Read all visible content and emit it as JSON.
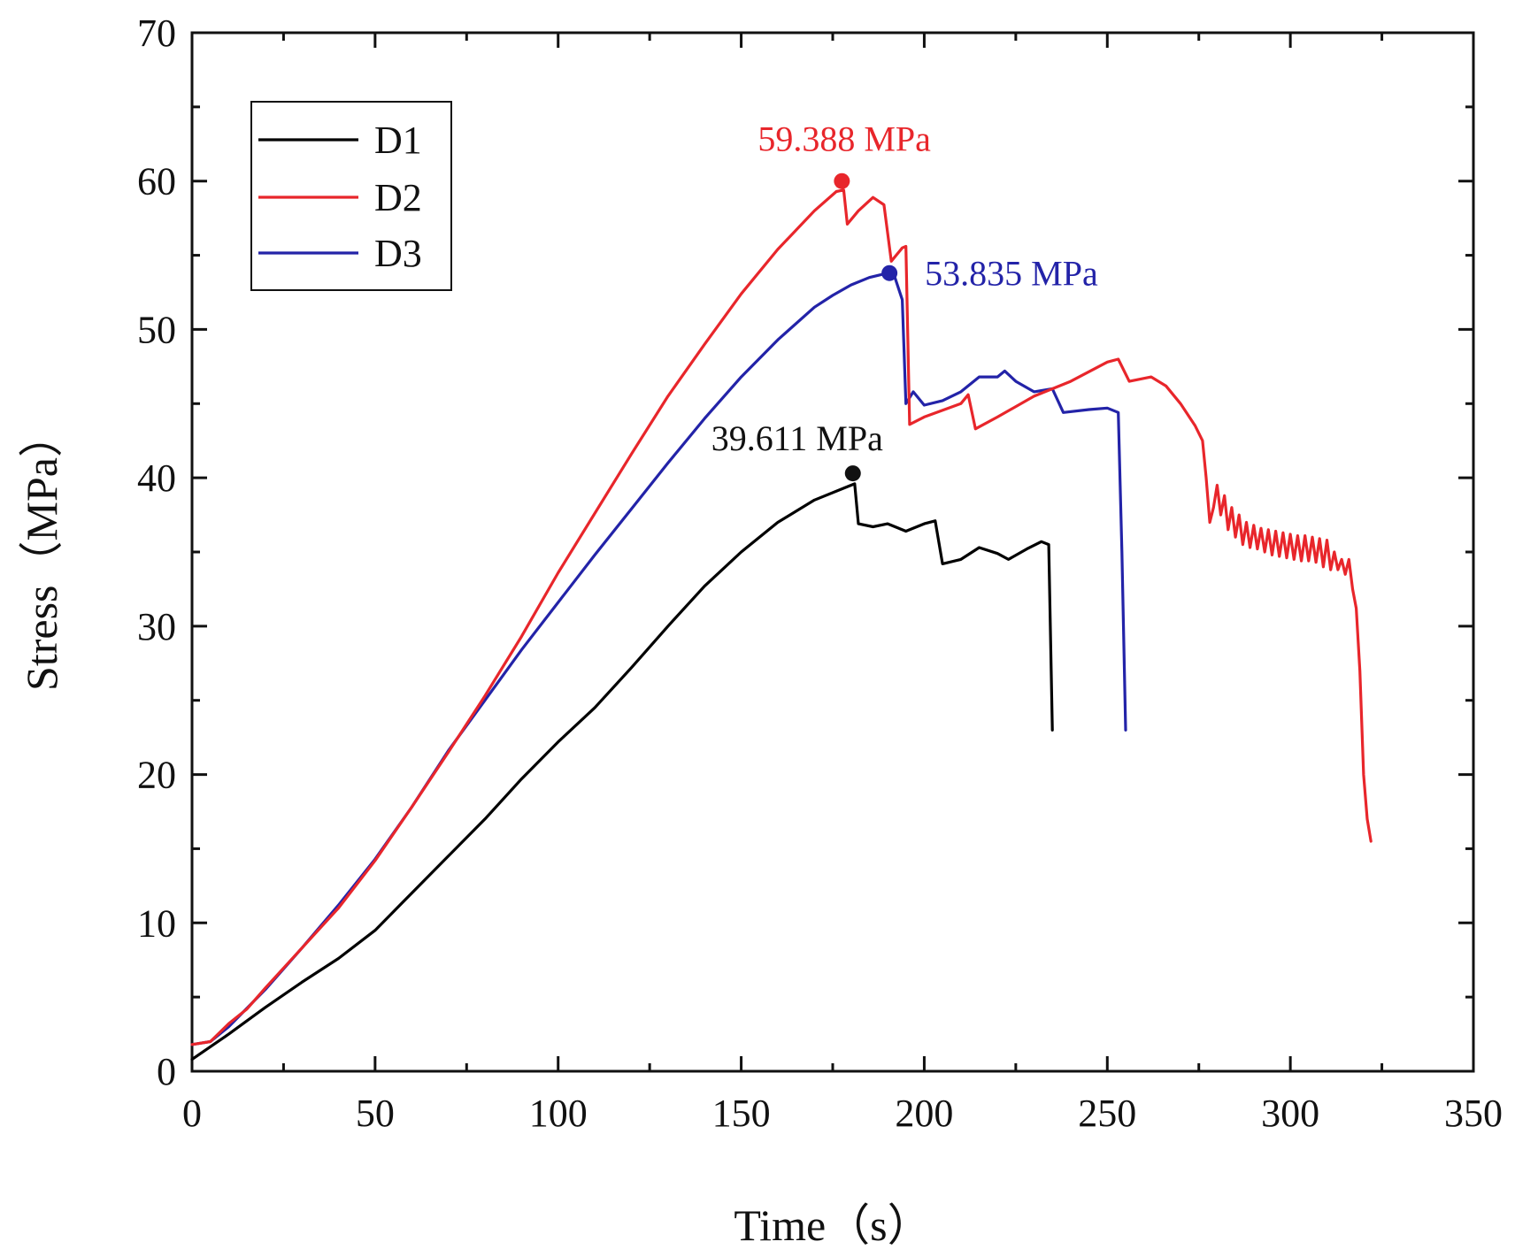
{
  "chart_data": {
    "type": "line",
    "title": "",
    "xlabel": "Time（s）",
    "ylabel": "Stress（MPa）",
    "xlim": [
      0,
      350
    ],
    "ylim": [
      0,
      70
    ],
    "xticks": [
      0,
      50,
      100,
      150,
      200,
      250,
      300,
      350
    ],
    "yticks": [
      0,
      10,
      20,
      30,
      40,
      50,
      60,
      70
    ],
    "x_tick_labels": [
      "0",
      "50",
      "100",
      "150",
      "200",
      "250",
      "300",
      "350"
    ],
    "y_tick_labels": [
      "0",
      "10",
      "20",
      "30",
      "40",
      "50",
      "60",
      "70"
    ],
    "grid": false,
    "legend_position": "top-left",
    "series": [
      {
        "name": "D1",
        "color": "#000000",
        "points": [
          [
            0,
            0.8
          ],
          [
            10,
            2.5
          ],
          [
            20,
            4.3
          ],
          [
            30,
            6.0
          ],
          [
            40,
            7.6
          ],
          [
            50,
            9.5
          ],
          [
            60,
            12.0
          ],
          [
            70,
            14.5
          ],
          [
            80,
            17.0
          ],
          [
            90,
            19.7
          ],
          [
            100,
            22.2
          ],
          [
            110,
            24.5
          ],
          [
            120,
            27.2
          ],
          [
            130,
            30.0
          ],
          [
            140,
            32.7
          ],
          [
            150,
            35.0
          ],
          [
            160,
            37.0
          ],
          [
            170,
            38.5
          ],
          [
            178,
            39.3
          ],
          [
            181,
            39.6
          ],
          [
            182,
            36.9
          ],
          [
            186,
            36.7
          ],
          [
            190,
            36.9
          ],
          [
            195,
            36.4
          ],
          [
            200,
            36.9
          ],
          [
            203,
            37.1
          ],
          [
            205,
            34.2
          ],
          [
            210,
            34.5
          ],
          [
            215,
            35.3
          ],
          [
            220,
            34.9
          ],
          [
            223,
            34.5
          ],
          [
            228,
            35.2
          ],
          [
            232,
            35.7
          ],
          [
            234,
            35.5
          ],
          [
            235,
            23.0
          ]
        ]
      },
      {
        "name": "D2",
        "color": "#e8262b",
        "points": [
          [
            0,
            1.8
          ],
          [
            5,
            2.0
          ],
          [
            10,
            3.2
          ],
          [
            15,
            4.2
          ],
          [
            20,
            5.6
          ],
          [
            30,
            8.3
          ],
          [
            40,
            11.0
          ],
          [
            50,
            14.2
          ],
          [
            60,
            17.8
          ],
          [
            70,
            21.5
          ],
          [
            80,
            25.3
          ],
          [
            90,
            29.3
          ],
          [
            100,
            33.6
          ],
          [
            110,
            37.6
          ],
          [
            120,
            41.6
          ],
          [
            130,
            45.5
          ],
          [
            140,
            49.0
          ],
          [
            150,
            52.4
          ],
          [
            160,
            55.4
          ],
          [
            170,
            58.0
          ],
          [
            176,
            59.3
          ],
          [
            178,
            59.4
          ],
          [
            179,
            57.1
          ],
          [
            182,
            58.0
          ],
          [
            186,
            58.9
          ],
          [
            189,
            58.4
          ],
          [
            191,
            54.6
          ],
          [
            194,
            55.5
          ],
          [
            195,
            55.6
          ],
          [
            196,
            43.6
          ],
          [
            200,
            44.1
          ],
          [
            210,
            45.0
          ],
          [
            212,
            45.6
          ],
          [
            214,
            43.3
          ],
          [
            220,
            44.1
          ],
          [
            230,
            45.5
          ],
          [
            240,
            46.5
          ],
          [
            250,
            47.8
          ],
          [
            253,
            48.0
          ],
          [
            256,
            46.5
          ],
          [
            262,
            46.8
          ],
          [
            266,
            46.2
          ],
          [
            270,
            45.0
          ],
          [
            274,
            43.5
          ],
          [
            276,
            42.5
          ],
          [
            277,
            40.0
          ],
          [
            278,
            37.0
          ],
          [
            279,
            38.0
          ],
          [
            280,
            39.5
          ],
          [
            281,
            37.5
          ],
          [
            282,
            38.8
          ],
          [
            283,
            36.5
          ],
          [
            284,
            38.0
          ],
          [
            285,
            36.0
          ],
          [
            286,
            37.5
          ],
          [
            287,
            35.5
          ],
          [
            288,
            37.0
          ],
          [
            289,
            35.3
          ],
          [
            290,
            36.8
          ],
          [
            291,
            35.2
          ],
          [
            292,
            36.6
          ],
          [
            293,
            35.0
          ],
          [
            294,
            36.5
          ],
          [
            295,
            34.8
          ],
          [
            296,
            36.4
          ],
          [
            297,
            34.7
          ],
          [
            298,
            36.3
          ],
          [
            299,
            34.6
          ],
          [
            300,
            36.2
          ],
          [
            301,
            34.5
          ],
          [
            302,
            36.1
          ],
          [
            303,
            34.4
          ],
          [
            304,
            36.1
          ],
          [
            305,
            34.4
          ],
          [
            306,
            36.0
          ],
          [
            307,
            34.3
          ],
          [
            308,
            35.9
          ],
          [
            309,
            34.0
          ],
          [
            310,
            35.8
          ],
          [
            311,
            33.8
          ],
          [
            312,
            35.0
          ],
          [
            313,
            33.8
          ],
          [
            314,
            34.5
          ],
          [
            315,
            33.5
          ],
          [
            316,
            34.5
          ],
          [
            317,
            32.5
          ],
          [
            318,
            31.2
          ],
          [
            319,
            27.0
          ],
          [
            320,
            20.0
          ],
          [
            321,
            17.0
          ],
          [
            322,
            15.5
          ]
        ]
      },
      {
        "name": "D3",
        "color": "#2323a8",
        "points": [
          [
            0,
            1.8
          ],
          [
            5,
            2.0
          ],
          [
            10,
            3.0
          ],
          [
            20,
            5.5
          ],
          [
            30,
            8.3
          ],
          [
            40,
            11.2
          ],
          [
            50,
            14.3
          ],
          [
            60,
            17.8
          ],
          [
            70,
            21.6
          ],
          [
            80,
            25.0
          ],
          [
            90,
            28.4
          ],
          [
            100,
            31.6
          ],
          [
            110,
            34.8
          ],
          [
            120,
            37.9
          ],
          [
            130,
            41.0
          ],
          [
            140,
            44.0
          ],
          [
            150,
            46.8
          ],
          [
            160,
            49.3
          ],
          [
            170,
            51.5
          ],
          [
            175,
            52.3
          ],
          [
            180,
            53.0
          ],
          [
            185,
            53.5
          ],
          [
            190,
            53.8
          ],
          [
            192,
            53.5
          ],
          [
            194,
            52.0
          ],
          [
            195,
            45.0
          ],
          [
            197,
            45.8
          ],
          [
            200,
            44.9
          ],
          [
            205,
            45.2
          ],
          [
            210,
            45.8
          ],
          [
            215,
            46.8
          ],
          [
            220,
            46.8
          ],
          [
            222,
            47.2
          ],
          [
            225,
            46.5
          ],
          [
            230,
            45.8
          ],
          [
            235,
            46.0
          ],
          [
            238,
            44.4
          ],
          [
            245,
            44.6
          ],
          [
            250,
            44.7
          ],
          [
            253,
            44.4
          ],
          [
            254,
            35.0
          ],
          [
            255,
            23.0
          ]
        ]
      }
    ],
    "annotations": [
      {
        "text": "59.388 MPa",
        "series": "D2",
        "x": 177.5,
        "y": 60.0,
        "color": "#e8262b"
      },
      {
        "text": "53.835 MPa",
        "series": "D3",
        "x": 190.5,
        "y": 53.8,
        "color": "#2323a8"
      },
      {
        "text": "39.611 MPa",
        "series": "D1",
        "x": 180.5,
        "y": 40.3,
        "color": "#111111"
      }
    ]
  }
}
